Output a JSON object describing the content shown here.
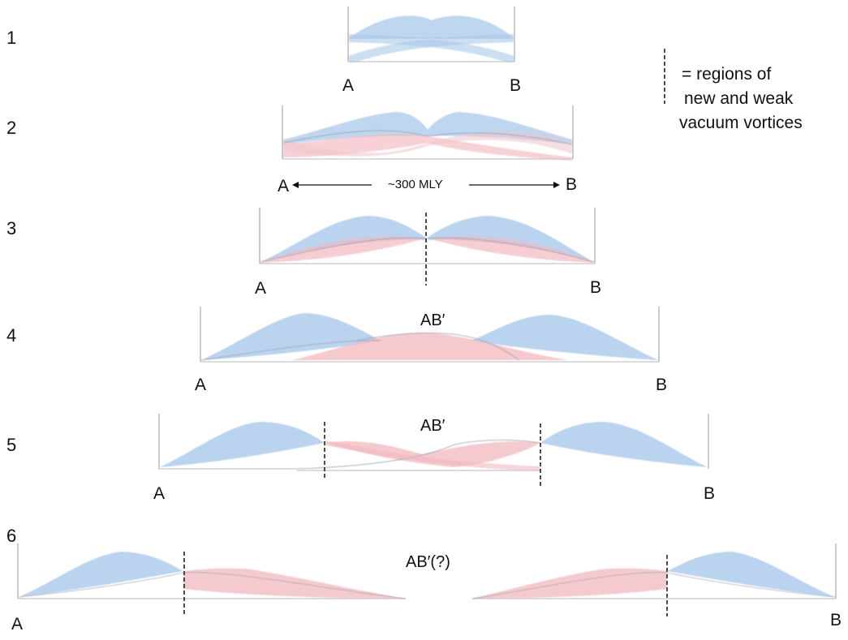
{
  "stages": [
    {
      "number": "1",
      "left": "A",
      "right": "B"
    },
    {
      "number": "2",
      "left": "A",
      "right": "B",
      "distance": "~300 MLY"
    },
    {
      "number": "3",
      "left": "A",
      "right": "B"
    },
    {
      "number": "4",
      "left": "A",
      "right": "B",
      "center": "AB′"
    },
    {
      "number": "5",
      "left": "A",
      "right": "B",
      "center": "AB′"
    },
    {
      "number": "6",
      "left": "A",
      "right": "B",
      "center": "AB′(?)"
    }
  ],
  "legend": {
    "line1": "=  regions of",
    "line2": "new and weak",
    "line3": "vacuum vortices"
  },
  "colors": {
    "blue_vortex": "#a9c8ea",
    "red_vortex": "#f2b8bf",
    "frame": "#9a9a9a",
    "marker": "#222222"
  }
}
